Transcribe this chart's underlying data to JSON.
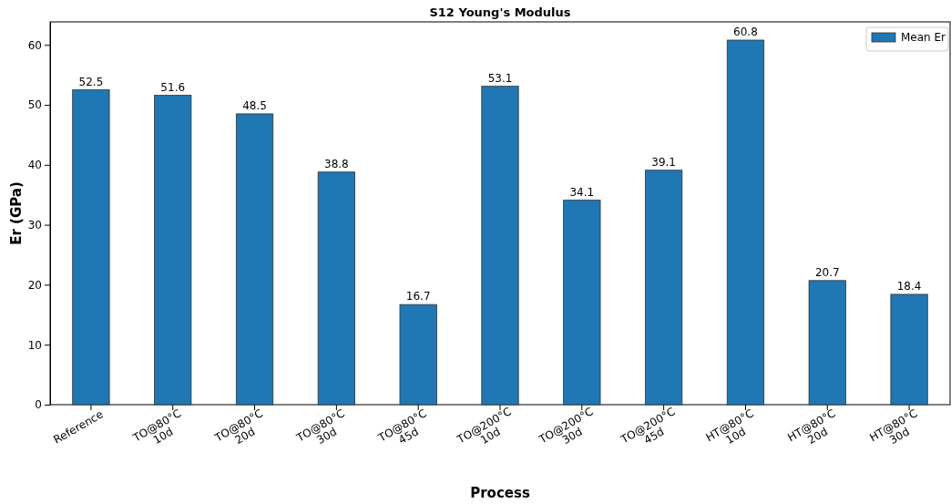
{
  "chart_data": {
    "type": "bar",
    "title": "S12 Young's Modulus",
    "xlabel": "Process",
    "ylabel": "Er (GPa)",
    "categories": [
      "Reference",
      "TO@80°C\n10d",
      "TO@80°C\n20d",
      "TO@80°C\n30d",
      "TO@80°C\n45d",
      "TO@200°C\n10d",
      "TO@200°C\n30d",
      "TO@200°C\n45d",
      "HT@80°C\n10d",
      "HT@80°C\n20d",
      "HT@80°C\n30d"
    ],
    "series": [
      {
        "name": "Mean Er",
        "color": "#1f77b4",
        "values": [
          52.5,
          51.6,
          48.5,
          38.8,
          16.7,
          53.1,
          34.1,
          39.1,
          60.8,
          20.7,
          18.4
        ]
      }
    ],
    "ylim": [
      0,
      63.84
    ],
    "yticks": [
      0,
      10,
      20,
      30,
      40,
      50,
      60
    ],
    "data_labels": true,
    "legend": "top right"
  }
}
